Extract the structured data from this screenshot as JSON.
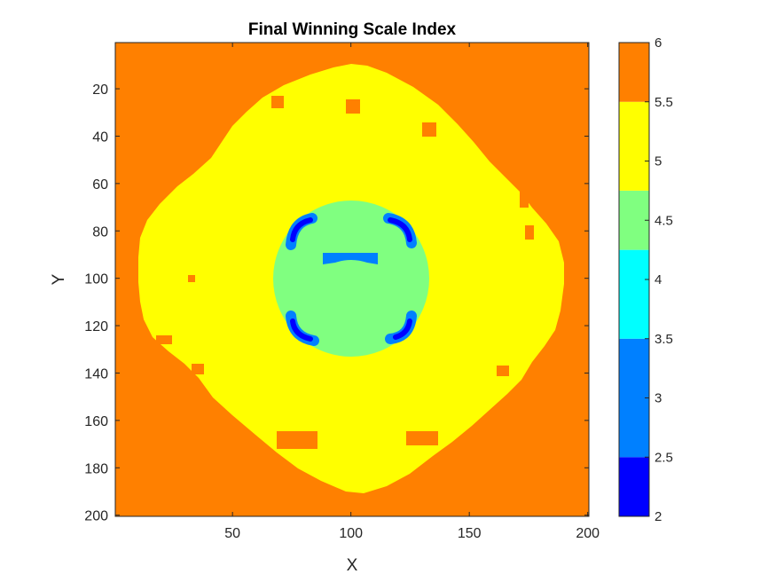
{
  "chart_data": {
    "type": "heatmap",
    "title": "Final Winning Scale Index",
    "xlabel": "X",
    "ylabel": "Y",
    "xlim": [
      1,
      200
    ],
    "ylim": [
      1,
      200
    ],
    "y_direction": "reversed",
    "x_ticks": [
      50,
      100,
      150,
      200
    ],
    "x_tick_labels": [
      "50",
      "100",
      "150",
      "200"
    ],
    "y_ticks": [
      20,
      40,
      60,
      80,
      100,
      120,
      140,
      160,
      180,
      200
    ],
    "y_tick_labels": [
      "20",
      "40",
      "60",
      "80",
      "100",
      "120",
      "140",
      "160",
      "180",
      "200"
    ],
    "colorbar": {
      "range": [
        2,
        6
      ],
      "ticks": [
        2,
        2.5,
        3,
        3.5,
        4,
        4.5,
        5,
        5.5,
        6
      ],
      "tick_labels": [
        "2",
        "2.5",
        "3",
        "3.5",
        "4",
        "4.5",
        "5",
        "5.5",
        "6"
      ],
      "levels": [
        {
          "value": 2,
          "color": "#0000FF"
        },
        {
          "value": 3,
          "color": "#0080FF"
        },
        {
          "value": 4,
          "color": "#00FFFF"
        },
        {
          "value": 4.5,
          "color": "#80FF80"
        },
        {
          "value": 5,
          "color": "#FFFF00"
        },
        {
          "value": 6,
          "color": "#FF8000"
        }
      ]
    },
    "regions": [
      {
        "name": "background",
        "value": 6,
        "description": "outer area"
      },
      {
        "name": "ring",
        "value": 5,
        "shape": "rounded diamond",
        "center": [
          101,
          101
        ],
        "x_range": [
          10,
          190
        ],
        "y_range": [
          10,
          190
        ]
      },
      {
        "name": "disk",
        "value": 4.5,
        "shape": "circle",
        "center": [
          100,
          100
        ],
        "radius": 33
      },
      {
        "name": "top-left-arc",
        "value": 2,
        "center": [
          80,
          80
        ]
      },
      {
        "name": "top-right-arc",
        "value": 2,
        "center": [
          120,
          80
        ]
      },
      {
        "name": "bottom-left-arc",
        "value": 2,
        "center": [
          80,
          121
        ]
      },
      {
        "name": "bottom-right-arc",
        "value": 2,
        "center": [
          120,
          121
        ]
      },
      {
        "name": "center-bar",
        "value": 3,
        "x_range": [
          88,
          111
        ],
        "y_range": [
          89,
          95
        ]
      }
    ]
  }
}
